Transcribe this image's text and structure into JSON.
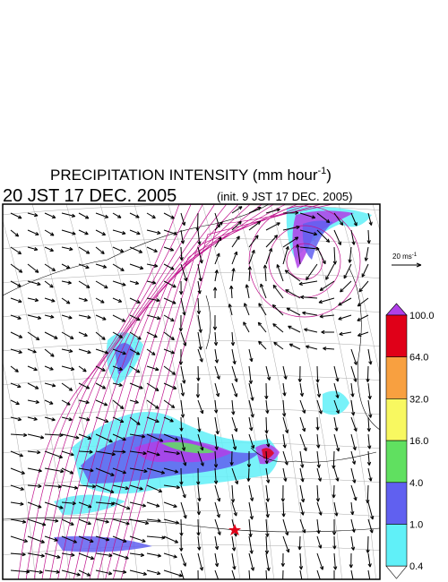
{
  "header": {
    "title": {
      "text": "PRECIPITATION INTENSITY (mm hour",
      "superscript": "-1",
      "suffix": ")"
    },
    "time": "20 JST 17 DEC. 2005",
    "init": "(init. 9 JST 17 DEC. 2005)"
  },
  "vector_reference": {
    "text": "20 ms",
    "superscript": "-1"
  },
  "legend": {
    "levels": [
      "100.0",
      "64.0",
      "32.0",
      "16.0",
      "4.0",
      "1.0",
      "0.4"
    ],
    "over_color": "#b040e8",
    "colors": [
      "#e00018",
      "#f8a040",
      "#f8f860",
      "#60e060",
      "#6060f0",
      "#60f0f8"
    ],
    "under_color": "#ffffff"
  }
}
